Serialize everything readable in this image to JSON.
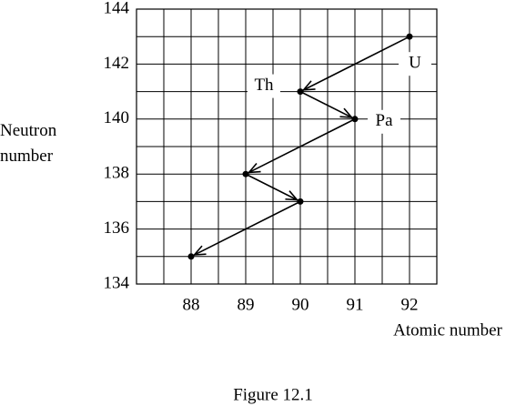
{
  "chart_data": {
    "type": "line",
    "title": "Figure 12.1",
    "xlabel": "Atomic number",
    "ylabel": "Neutron number",
    "x": [
      92,
      90,
      91,
      89,
      90,
      88
    ],
    "values": [
      143,
      141,
      140,
      138,
      137,
      135
    ],
    "point_labels": [
      "U",
      "Th",
      "Pa",
      null,
      null,
      null
    ],
    "color": "#000000",
    "xlim": [
      87,
      92.5
    ],
    "xticks": [
      88,
      89,
      90,
      91,
      92
    ],
    "ylim": [
      134,
      144
    ],
    "yticks": [
      134,
      136,
      138,
      140,
      142,
      144
    ],
    "grid": true
  }
}
